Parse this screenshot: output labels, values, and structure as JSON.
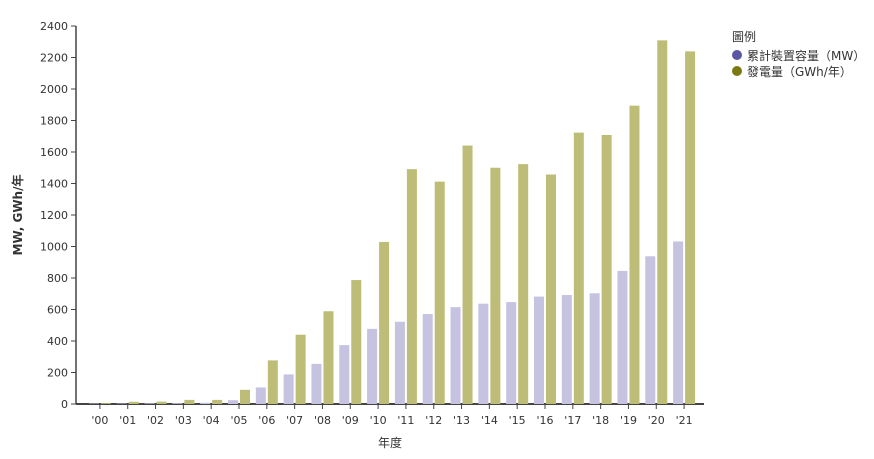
{
  "chart_data": {
    "type": "bar",
    "title": "",
    "xlabel": "年度",
    "ylabel": "MW, GWh/年",
    "ylim": [
      0,
      2400
    ],
    "yticks": [
      0,
      200,
      400,
      600,
      800,
      1000,
      1200,
      1400,
      1600,
      1800,
      2000,
      2200,
      2400
    ],
    "categories": [
      "'00",
      "'01",
      "'02",
      "'03",
      "'04",
      "'05",
      "'06",
      "'07",
      "'08",
      "'09",
      "'10",
      "'11",
      "'12",
      "'13",
      "'14",
      "'15",
      "'16",
      "'17",
      "'18",
      "'19",
      "'20",
      "'21"
    ],
    "series": [
      {
        "name": "累計裝置容量（MW）",
        "color": "#c5c3e0",
        "legend_color": "#5b57a6",
        "values": [
          3,
          3,
          4,
          5,
          8,
          24,
          105,
          188,
          255,
          374,
          477,
          522,
          571,
          615,
          637,
          647,
          682,
          692,
          703,
          845,
          938,
          1032
        ]
      },
      {
        "name": "發電量（GWh/年）",
        "color": "#bdbd78",
        "legend_color": "#7a7a10",
        "values": [
          5,
          14,
          15,
          26,
          26,
          90,
          277,
          440,
          589,
          787,
          1029,
          1491,
          1412,
          1641,
          1500,
          1523,
          1457,
          1723,
          1708,
          1894,
          2309,
          2239
        ]
      }
    ],
    "legend": {
      "title": "圖例",
      "placement": "right"
    },
    "grid": false
  }
}
